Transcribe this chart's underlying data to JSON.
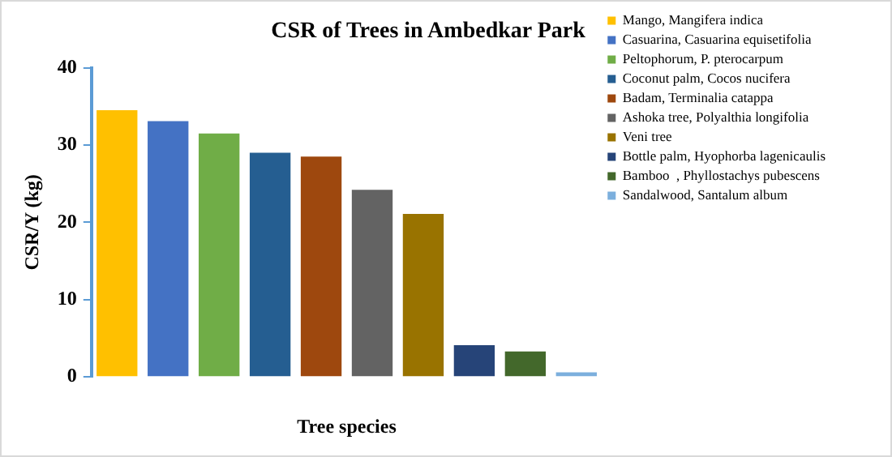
{
  "chart_data": {
    "type": "bar",
    "title": "CSR of Trees in Ambedkar Park",
    "xlabel": "Tree species",
    "ylabel": "CSR/Y (kg)",
    "categories": [
      null,
      null,
      null,
      null,
      null,
      null,
      null,
      null,
      null,
      null
    ],
    "series": [
      {
        "name": "Mango, Mangifera indica",
        "color": "#ffc000",
        "values": [
          34.5,
          null,
          null,
          null,
          null,
          null,
          null,
          null,
          null,
          null
        ]
      },
      {
        "name": "Casuarina, Casuarina equisetifolia",
        "color": "#4472c4",
        "values": [
          null,
          33.1,
          null,
          null,
          null,
          null,
          null,
          null,
          null,
          null
        ]
      },
      {
        "name": "Peltophorum, P. pterocarpum",
        "color": "#70ad47",
        "values": [
          null,
          null,
          31.5,
          null,
          null,
          null,
          null,
          null,
          null,
          null
        ]
      },
      {
        "name": "Coconut palm, Cocos nucifera",
        "color": "#255e91",
        "values": [
          null,
          null,
          null,
          29.0,
          null,
          null,
          null,
          null,
          null,
          null
        ]
      },
      {
        "name": "Badam, Terminalia catappa",
        "color": "#9e480e",
        "values": [
          null,
          null,
          null,
          null,
          28.5,
          null,
          null,
          null,
          null,
          null
        ]
      },
      {
        "name": "Ashoka tree, Polyalthia longifolia",
        "color": "#636363",
        "values": [
          null,
          null,
          null,
          null,
          null,
          24.2,
          null,
          null,
          null,
          null
        ]
      },
      {
        "name": "Veni tree",
        "color": "#997300",
        "values": [
          null,
          null,
          null,
          null,
          null,
          null,
          21.1,
          null,
          null,
          null
        ]
      },
      {
        "name": "Bottle palm, Hyophorba lagenicaulis",
        "color": "#264478",
        "values": [
          null,
          null,
          null,
          null,
          null,
          null,
          null,
          4.1,
          null,
          null
        ]
      },
      {
        "name": "Bamboo  , Phyllostachys pubescens",
        "color": "#43682b",
        "values": [
          null,
          null,
          null,
          null,
          null,
          null,
          null,
          null,
          3.3,
          null
        ]
      },
      {
        "name": "Sandalwood, Santalum album",
        "color": "#7cafdd",
        "values": [
          null,
          null,
          null,
          null,
          null,
          null,
          null,
          null,
          null,
          0.6
        ]
      }
    ],
    "ylim": [
      0,
      40
    ],
    "yticks": [
      0,
      10,
      20,
      30,
      40
    ],
    "stacked": true,
    "grid": false,
    "legend": "top right",
    "tick_labels": "y"
  }
}
